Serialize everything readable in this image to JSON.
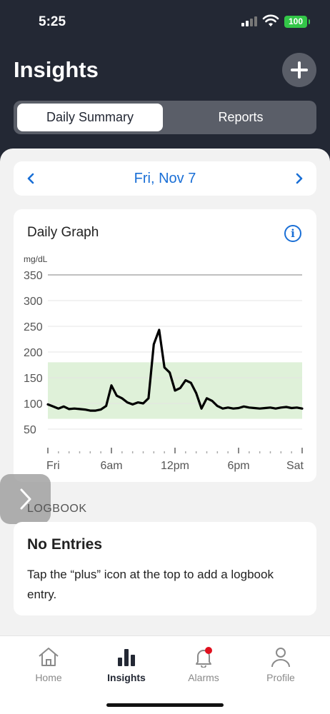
{
  "status_bar": {
    "time": "5:25",
    "battery": "100"
  },
  "header": {
    "title": "Insights"
  },
  "segments": {
    "daily_summary": "Daily Summary",
    "reports": "Reports"
  },
  "date_nav": {
    "date": "Fri, Nov 7"
  },
  "graph_card": {
    "title": "Daily Graph"
  },
  "chart_data": {
    "type": "line",
    "ylabel": "mg/dL",
    "ylim": [
      50,
      350
    ],
    "y_ticks": [
      "350",
      "300",
      "250",
      "200",
      "150",
      "100",
      "50"
    ],
    "x_ticks": [
      "Fri",
      "6am",
      "12pm",
      "6pm",
      "Sat"
    ],
    "target_range": [
      70,
      180
    ],
    "series": [
      {
        "x": [
          0,
          0.5,
          1,
          1.5,
          2,
          2.5,
          3,
          3.5,
          4,
          4.5,
          5,
          5.5,
          6,
          6.5,
          7,
          7.5,
          8,
          8.5,
          9,
          9.5,
          10,
          10.5,
          11,
          11.5,
          12,
          12.5,
          13,
          13.5,
          14,
          14.5,
          15,
          15.5,
          16,
          16.5,
          17,
          17.5,
          18,
          18.5,
          19,
          19.5,
          20,
          20.5,
          21,
          21.5,
          22,
          22.5,
          23,
          23.5,
          24
        ],
        "values": [
          98,
          94,
          90,
          94,
          89,
          90,
          89,
          88,
          86,
          86,
          88,
          95,
          135,
          115,
          110,
          102,
          98,
          102,
          100,
          110,
          215,
          243,
          170,
          160,
          125,
          130,
          145,
          140,
          120,
          90,
          110,
          105,
          95,
          90,
          92,
          90,
          91,
          94,
          92,
          91,
          90,
          91,
          92,
          90,
          92,
          93,
          91,
          92,
          90
        ]
      }
    ],
    "line_color": "#000000",
    "range_color": "#dff1d9",
    "grid": true
  },
  "logbook": {
    "label": "LOGBOOK",
    "heading": "No Entries",
    "message": "Tap the “plus” icon at the top to add a logbook entry."
  },
  "tabs": [
    {
      "label": "Home",
      "icon": "home-icon"
    },
    {
      "label": "Insights",
      "icon": "insights-icon"
    },
    {
      "label": "Alarms",
      "icon": "bell-icon"
    },
    {
      "label": "Profile",
      "icon": "person-icon"
    }
  ]
}
